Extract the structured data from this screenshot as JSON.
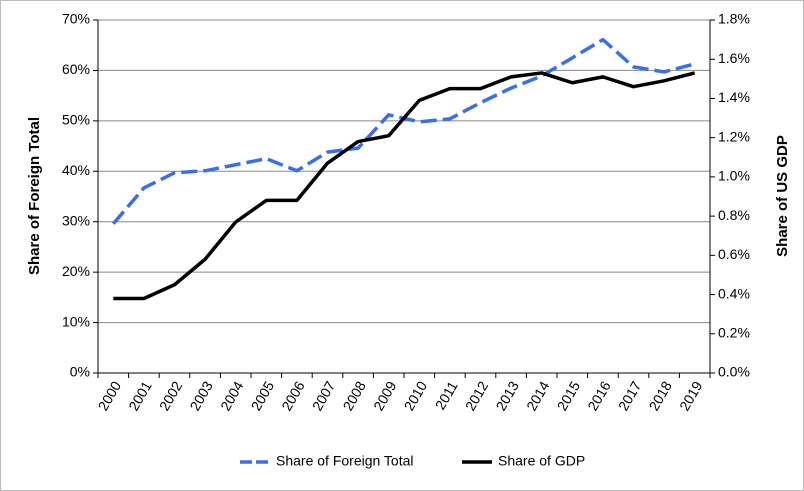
{
  "chart_data": {
    "type": "line",
    "categories": [
      "2000",
      "2001",
      "2002",
      "2003",
      "2004",
      "2005",
      "2006",
      "2007",
      "2008",
      "2009",
      "2010",
      "2011",
      "2012",
      "2013",
      "2014",
      "2015",
      "2016",
      "2017",
      "2018",
      "2019"
    ],
    "ylabel": "Share of Foreign Total",
    "y2label": "Share of US GDP",
    "ylim": [
      0,
      70
    ],
    "yticks": [
      {
        "value": 0,
        "label": "0%"
      },
      {
        "value": 10,
        "label": "10%"
      },
      {
        "value": 20,
        "label": "20%"
      },
      {
        "value": 30,
        "label": "30%"
      },
      {
        "value": 40,
        "label": "40%"
      },
      {
        "value": 50,
        "label": "50%"
      },
      {
        "value": 60,
        "label": "60%"
      },
      {
        "value": 70,
        "label": "70%"
      }
    ],
    "y2lim": [
      0,
      1.8
    ],
    "y2ticks": [
      {
        "value": 0,
        "label": "0.0%"
      },
      {
        "value": 0.2,
        "label": "0.2%"
      },
      {
        "value": 0.4,
        "label": "0.4%"
      },
      {
        "value": 0.6,
        "label": "0.6%"
      },
      {
        "value": 0.8,
        "label": "0.8%"
      },
      {
        "value": 1.0,
        "label": "1.0%"
      },
      {
        "value": 1.2,
        "label": "1.2%"
      },
      {
        "value": 1.4,
        "label": "1.4%"
      },
      {
        "value": 1.6,
        "label": "1.6%"
      },
      {
        "value": 1.8,
        "label": "1.8%"
      }
    ],
    "grid": true,
    "legend": "bottom",
    "series": [
      {
        "name": "Share of Foreign Total",
        "color": "#3a6fe8",
        "dashed": true,
        "values": [
          29.6,
          36.7,
          39.7,
          40.1,
          41.3,
          42.5,
          40.1,
          43.8,
          44.6,
          51.2,
          49.8,
          50.4,
          53.6,
          56.5,
          58.9,
          62.5,
          66.1,
          60.7,
          59.7,
          61.3
        ]
      },
      {
        "name": "Share of GDP",
        "color": "#000000",
        "axis": "y2",
        "values": [
          0.38,
          0.38,
          0.45,
          0.58,
          0.77,
          0.88,
          0.88,
          1.07,
          1.18,
          1.21,
          1.39,
          1.45,
          1.45,
          1.51,
          1.53,
          1.48,
          1.51,
          1.46,
          1.49,
          1.53
        ]
      }
    ]
  }
}
